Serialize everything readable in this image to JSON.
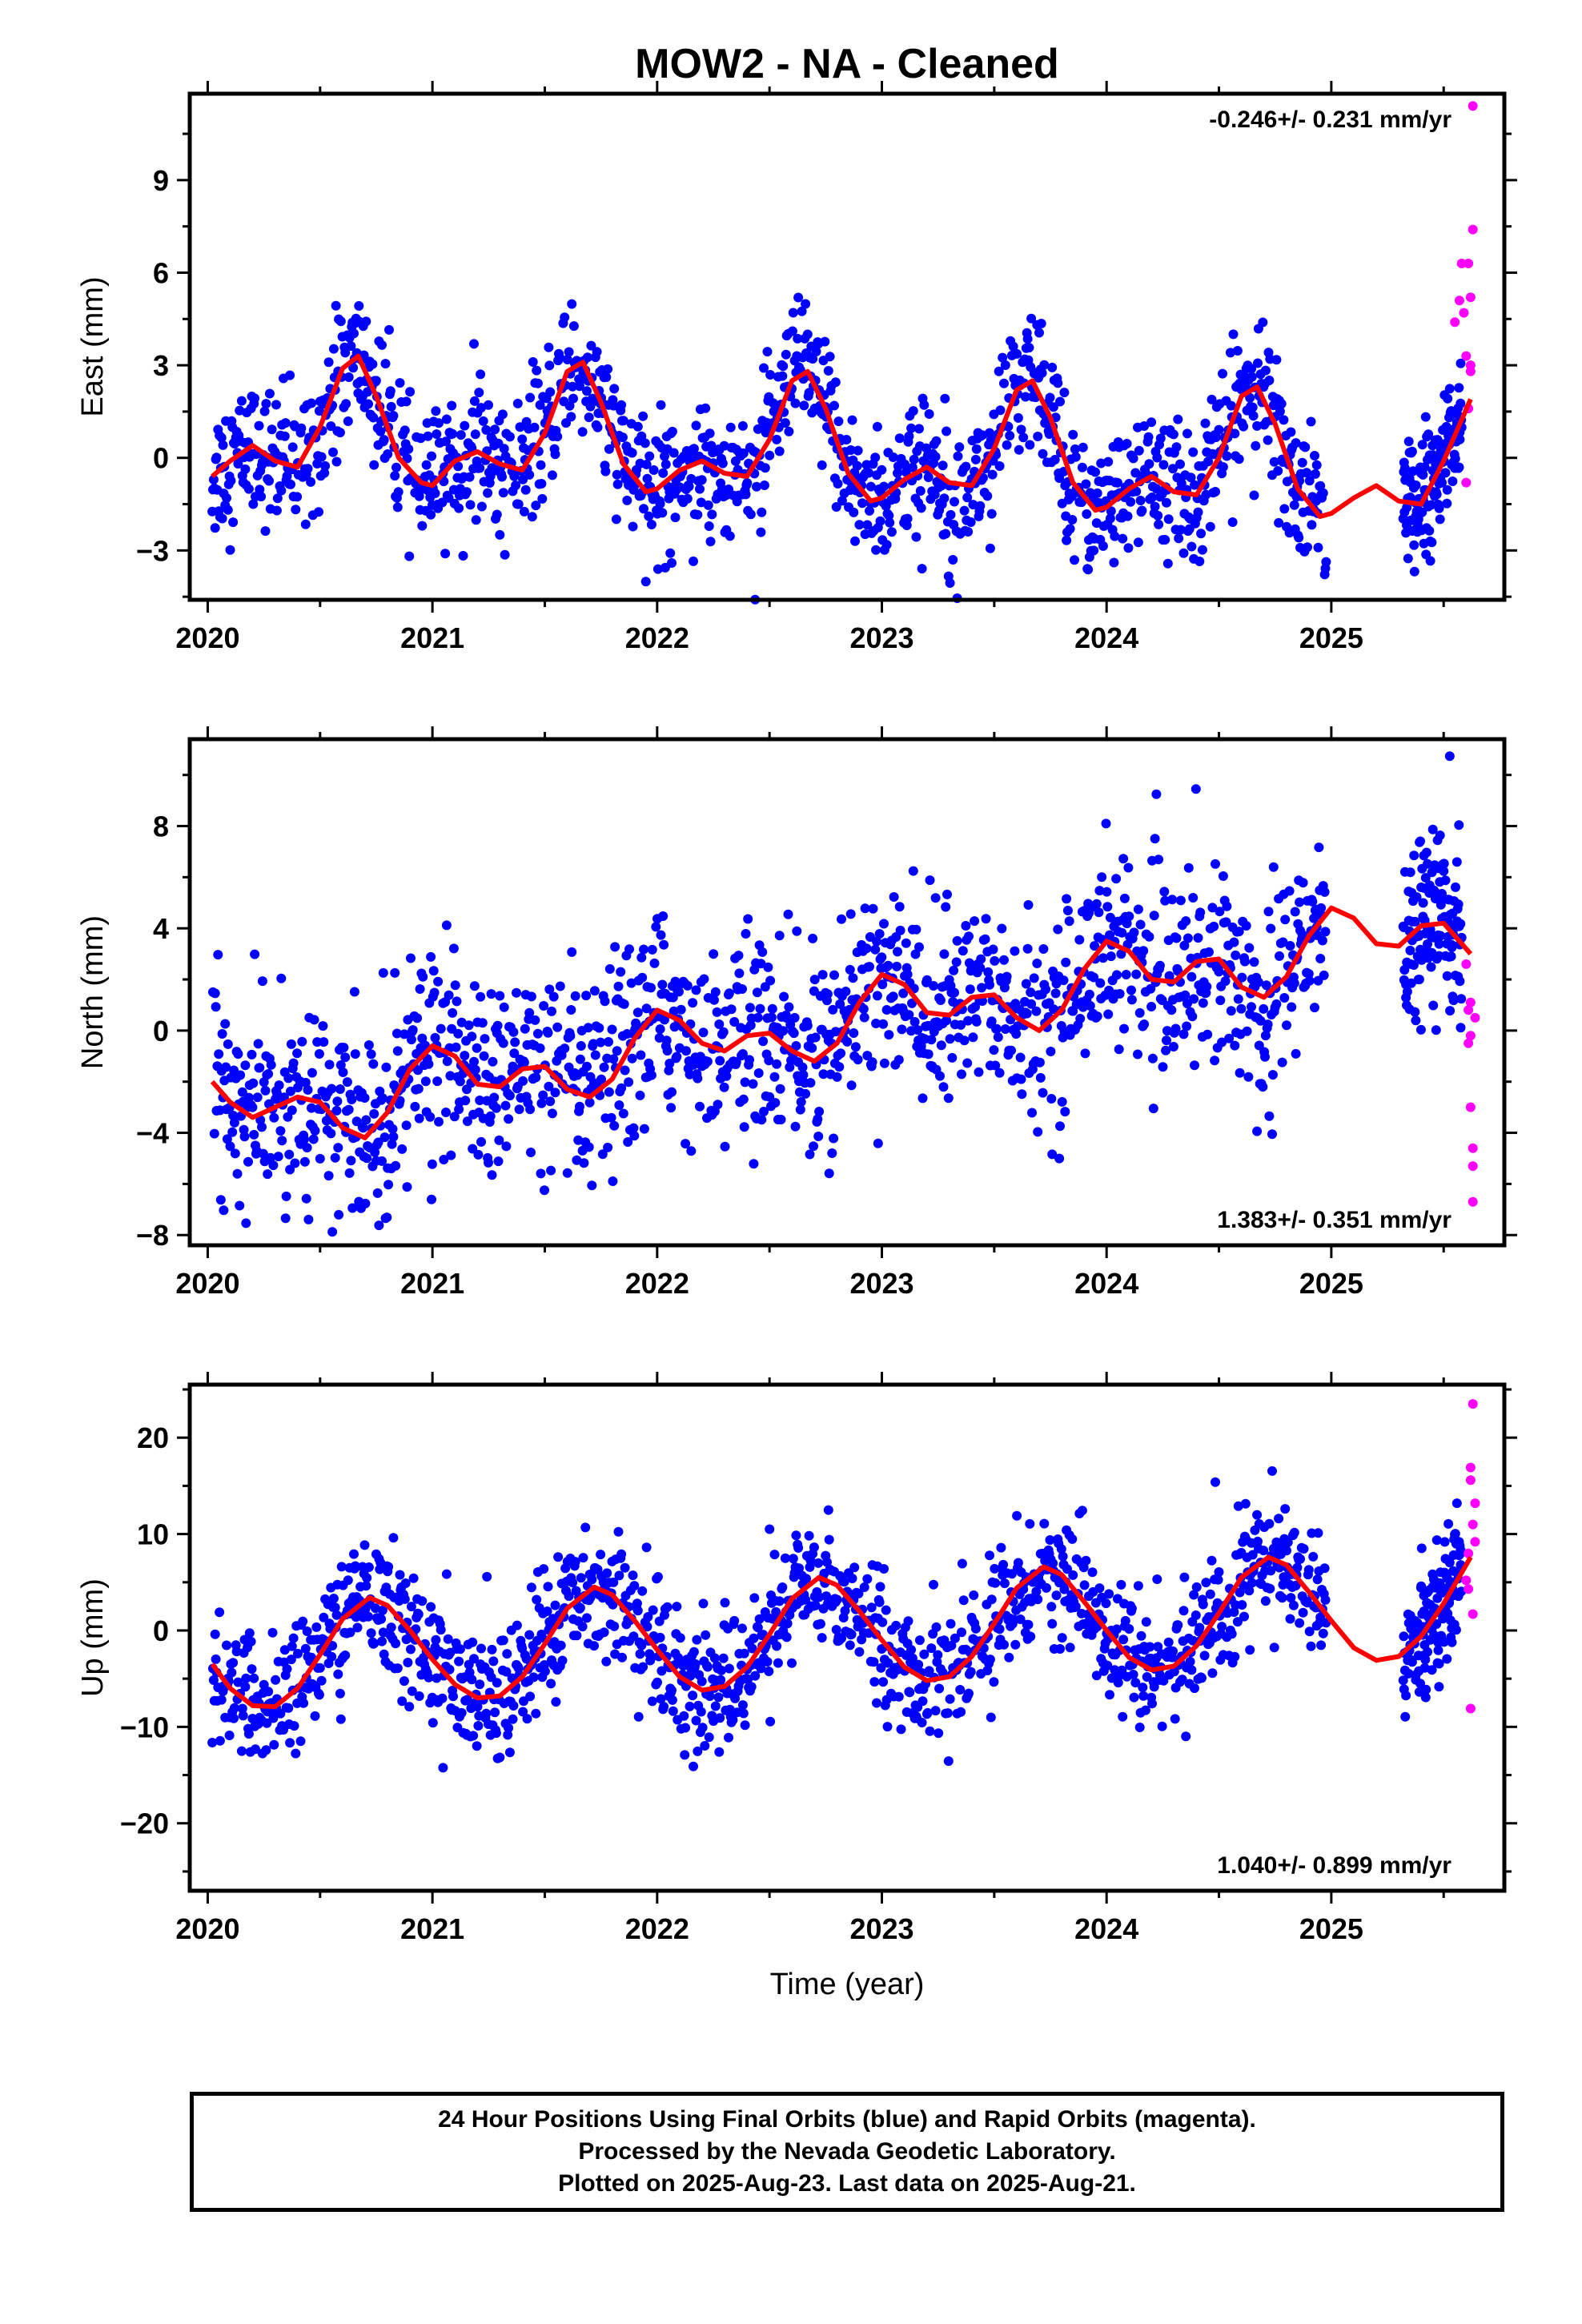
{
  "title": "MOW2  - NA - Cleaned",
  "xlabel": "Time (year)",
  "footer": {
    "line1": "24 Hour Positions Using Final Orbits (blue) and Rapid Orbits (magenta).",
    "line2": "Processed by the Nevada Geodetic Laboratory.",
    "line3": "Plotted on 2025-Aug-23. Last data on 2025-Aug-21."
  },
  "colors": {
    "final": "#0000ff",
    "rapid": "#ff00ff",
    "model": "#ff0000",
    "frame": "#000000"
  },
  "chart_data": [
    {
      "type": "scatter",
      "ylabel": "East (mm)",
      "rate_label": "-0.246+/- 0.231 mm/yr",
      "rate_position": "top-right",
      "xlim": [
        2019.92,
        2025.77
      ],
      "ylim": [
        -4.6,
        11.8
      ],
      "x_ticks": [
        2020,
        2021,
        2022,
        2023,
        2024,
        2025
      ],
      "y_ticks": [
        -3,
        0,
        3,
        6,
        9
      ],
      "grid": false,
      "model": {
        "name": "model fit",
        "x": [
          2020.02,
          2020.1,
          2020.2,
          2020.3,
          2020.4,
          2020.5,
          2020.6,
          2020.67,
          2020.75,
          2020.85,
          2020.95,
          2021.0,
          2021.1,
          2021.2,
          2021.3,
          2021.4,
          2021.5,
          2021.6,
          2021.67,
          2021.75,
          2021.85,
          2021.95,
          2022.0,
          2022.1,
          2022.2,
          2022.3,
          2022.4,
          2022.5,
          2022.6,
          2022.67,
          2022.75,
          2022.85,
          2022.95,
          2023.0,
          2023.1,
          2023.2,
          2023.3,
          2023.4,
          2023.5,
          2023.6,
          2023.67,
          2023.75,
          2023.85,
          2023.95,
          2024.0,
          2024.1,
          2024.2,
          2024.3,
          2024.4,
          2024.5,
          2024.6,
          2024.67,
          2024.75,
          2024.85,
          2024.95,
          2025.0,
          2025.1,
          2025.2,
          2025.3,
          2025.4,
          2025.5,
          2025.62
        ],
        "y": [
          -0.6,
          -0.1,
          0.4,
          -0.1,
          -0.3,
          1.0,
          2.9,
          3.3,
          2.0,
          0.0,
          -0.8,
          -0.9,
          -0.1,
          0.2,
          -0.2,
          -0.4,
          0.8,
          2.8,
          3.1,
          1.8,
          -0.2,
          -1.1,
          -1.0,
          -0.4,
          -0.1,
          -0.5,
          -0.6,
          0.6,
          2.5,
          2.8,
          1.6,
          -0.5,
          -1.4,
          -1.3,
          -0.7,
          -0.3,
          -0.8,
          -0.9,
          0.3,
          2.2,
          2.5,
          1.3,
          -0.8,
          -1.7,
          -1.6,
          -1.0,
          -0.6,
          -1.1,
          -1.2,
          0.0,
          2.0,
          2.3,
          1.1,
          -1.0,
          -1.9,
          -1.8,
          -1.3,
          -0.9,
          -1.4,
          -1.5,
          -0.1,
          1.9
        ]
      },
      "rapid": {
        "x": [
          2025.55,
          2025.57,
          2025.58,
          2025.59,
          2025.6,
          2025.6,
          2025.61,
          2025.61,
          2025.62,
          2025.62,
          2025.62,
          2025.63,
          2025.63
        ],
        "y": [
          4.4,
          5.1,
          6.3,
          4.7,
          3.3,
          -0.8,
          6.3,
          1.6,
          2.8,
          5.2,
          3.0,
          11.4,
          7.4
        ]
      },
      "final_series": {
        "amp_year": 1.6,
        "period_half": true,
        "trend": -0.246,
        "noise": 1.1,
        "offset": 0.3
      }
    },
    {
      "type": "scatter",
      "ylabel": "North (mm)",
      "rate_label": "1.383+/- 0.351 mm/yr",
      "rate_position": "bottom-right",
      "xlim": [
        2019.92,
        2025.77
      ],
      "ylim": [
        -8.4,
        11.4
      ],
      "x_ticks": [
        2020,
        2021,
        2022,
        2023,
        2024,
        2025
      ],
      "y_ticks": [
        -8,
        -4,
        0,
        4,
        8
      ],
      "grid": false,
      "model": {
        "name": "model fit",
        "x": [
          2020.02,
          2020.1,
          2020.2,
          2020.3,
          2020.4,
          2020.5,
          2020.6,
          2020.7,
          2020.8,
          2020.9,
          2021.0,
          2021.1,
          2021.2,
          2021.3,
          2021.4,
          2021.5,
          2021.6,
          2021.7,
          2021.8,
          2021.9,
          2022.0,
          2022.1,
          2022.2,
          2022.3,
          2022.4,
          2022.5,
          2022.6,
          2022.7,
          2022.8,
          2022.9,
          2023.0,
          2023.1,
          2023.2,
          2023.3,
          2023.4,
          2023.5,
          2023.6,
          2023.7,
          2023.8,
          2023.9,
          2024.0,
          2024.1,
          2024.2,
          2024.3,
          2024.4,
          2024.5,
          2024.6,
          2024.7,
          2024.8,
          2024.9,
          2025.0,
          2025.1,
          2025.2,
          2025.3,
          2025.4,
          2025.5,
          2025.62
        ],
        "y": [
          -2.0,
          -2.8,
          -3.4,
          -3.0,
          -2.6,
          -2.8,
          -3.8,
          -4.2,
          -3.2,
          -1.5,
          -0.6,
          -1.0,
          -2.1,
          -2.2,
          -1.5,
          -1.4,
          -2.3,
          -2.6,
          -1.9,
          -0.3,
          0.8,
          0.4,
          -0.5,
          -0.8,
          -0.2,
          -0.1,
          -0.8,
          -1.2,
          -0.5,
          1.1,
          2.2,
          1.8,
          0.7,
          0.6,
          1.3,
          1.4,
          0.5,
          0.0,
          0.8,
          2.4,
          3.5,
          3.1,
          2.0,
          1.9,
          2.7,
          2.8,
          1.7,
          1.3,
          2.1,
          3.7,
          4.8,
          4.4,
          3.4,
          3.3,
          4.1,
          4.2,
          3.0
        ]
      },
      "rapid": {
        "x": [
          2025.6,
          2025.61,
          2025.61,
          2025.62,
          2025.62,
          2025.62,
          2025.63,
          2025.63,
          2025.63,
          2025.64
        ],
        "y": [
          2.6,
          0.8,
          -0.5,
          1.1,
          -0.2,
          -3.0,
          -4.6,
          -5.3,
          -6.7,
          0.5
        ]
      },
      "final_series": {
        "amp_year": 1.4,
        "period_half": true,
        "trend": 1.383,
        "noise": 1.9,
        "offset": -2.5
      }
    },
    {
      "type": "scatter",
      "ylabel": "Up (mm)",
      "rate_label": "1.040+/- 0.899 mm/yr",
      "rate_position": "bottom-right",
      "xlim": [
        2019.92,
        2025.77
      ],
      "ylim": [
        -27,
        25.5
      ],
      "x_ticks": [
        2020,
        2021,
        2022,
        2023,
        2024,
        2025
      ],
      "y_ticks": [
        -20,
        -10,
        0,
        10,
        20
      ],
      "grid": false,
      "model": {
        "name": "model fit",
        "x": [
          2020.02,
          2020.1,
          2020.2,
          2020.3,
          2020.4,
          2020.5,
          2020.6,
          2020.72,
          2020.8,
          2020.9,
          2021.0,
          2021.1,
          2021.2,
          2021.3,
          2021.4,
          2021.5,
          2021.6,
          2021.72,
          2021.8,
          2021.9,
          2022.0,
          2022.1,
          2022.2,
          2022.3,
          2022.4,
          2022.5,
          2022.6,
          2022.72,
          2022.8,
          2022.9,
          2023.0,
          2023.1,
          2023.2,
          2023.3,
          2023.4,
          2023.5,
          2023.6,
          2023.72,
          2023.8,
          2023.9,
          2024.0,
          2024.1,
          2024.2,
          2024.3,
          2024.4,
          2024.5,
          2024.6,
          2024.72,
          2024.8,
          2024.9,
          2025.0,
          2025.1,
          2025.2,
          2025.3,
          2025.4,
          2025.5,
          2025.62
        ],
        "y": [
          -3.5,
          -6.0,
          -7.8,
          -7.9,
          -6.0,
          -2.5,
          1.2,
          3.4,
          2.6,
          0.0,
          -3.0,
          -5.6,
          -7.0,
          -6.8,
          -4.8,
          -1.4,
          2.3,
          4.5,
          3.7,
          1.0,
          -2.0,
          -4.8,
          -6.2,
          -5.8,
          -3.8,
          -0.4,
          3.3,
          5.5,
          4.7,
          2.0,
          -1.0,
          -3.8,
          -5.2,
          -4.8,
          -2.7,
          0.7,
          4.4,
          6.6,
          5.8,
          3.0,
          0.0,
          -2.8,
          -4.1,
          -3.7,
          -1.6,
          1.8,
          5.5,
          7.6,
          6.8,
          4.0,
          1.0,
          -1.8,
          -3.1,
          -2.7,
          -0.6,
          2.8,
          7.6
        ]
      },
      "rapid": {
        "x": [
          2025.6,
          2025.61,
          2025.61,
          2025.62,
          2025.62,
          2025.62,
          2025.63,
          2025.63,
          2025.63,
          2025.64,
          2025.64
        ],
        "y": [
          5.2,
          8.0,
          4.3,
          16.9,
          15.6,
          -8.1,
          23.5,
          11.0,
          1.7,
          13.2,
          9.2
        ]
      },
      "final_series": {
        "amp_year": 5.8,
        "period_half": false,
        "trend": 1.04,
        "noise": 3.3,
        "offset": -4.5
      }
    }
  ]
}
